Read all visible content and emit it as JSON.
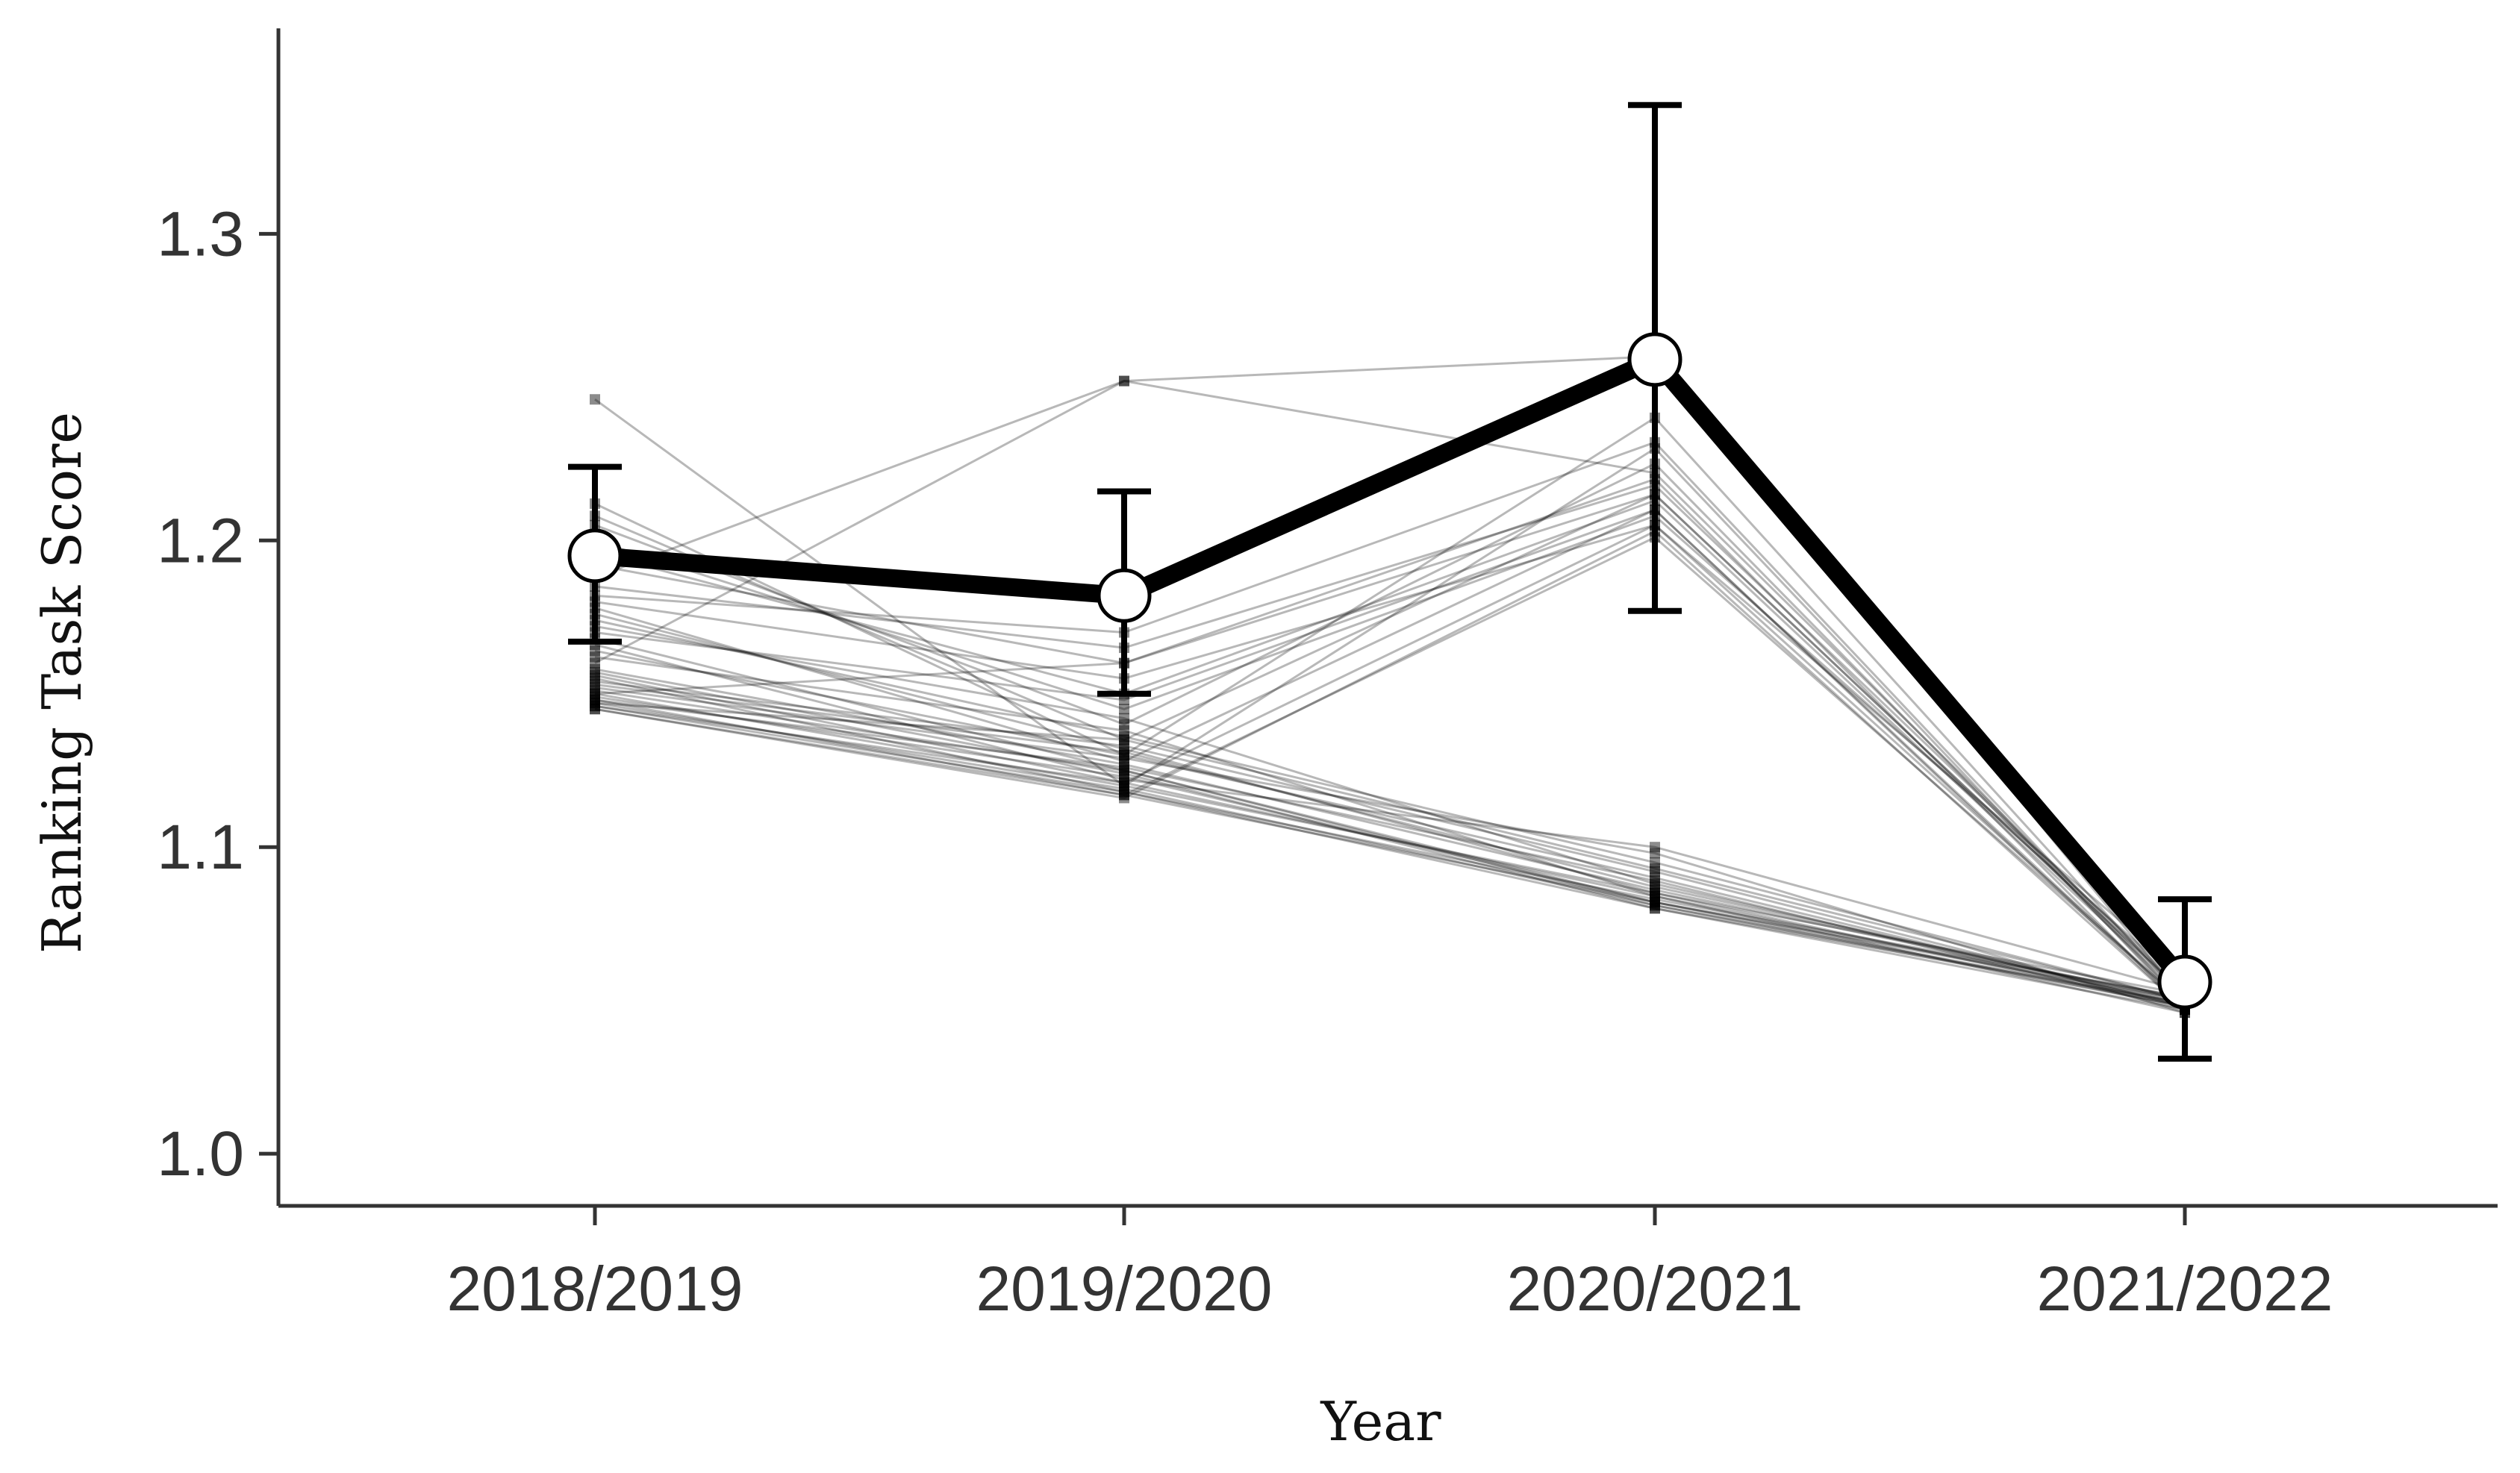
{
  "chart_data": {
    "type": "line",
    "title": "",
    "xlabel": "Year",
    "ylabel": "Ranking Task Score",
    "categories": [
      "2018/2019",
      "2019/2020",
      "2020/2021",
      "2021/2022"
    ],
    "ylim": [
      0.983,
      1.367
    ],
    "yticks": [
      1.0,
      1.1,
      1.2,
      1.3
    ],
    "ytick_labels": [
      "1.0",
      "1.1",
      "1.2",
      "1.3"
    ],
    "grid": false,
    "legend": "none",
    "mean_series": {
      "values": [
        1.195,
        1.182,
        1.259,
        1.056
      ],
      "error_low": [
        1.167,
        1.15,
        1.177,
        1.031
      ],
      "error_high": [
        1.224,
        1.216,
        1.342,
        1.083
      ]
    },
    "individual_series": [
      [
        1.246,
        1.12,
        1.23,
        1.048
      ],
      [
        1.212,
        1.13,
        1.24,
        1.05
      ],
      [
        1.208,
        1.135,
        1.215,
        1.052
      ],
      [
        1.205,
        1.14,
        1.225,
        1.049
      ],
      [
        1.2,
        1.145,
        1.208,
        1.055
      ],
      [
        1.196,
        1.15,
        1.213,
        1.051
      ],
      [
        1.192,
        1.16,
        1.22,
        1.047
      ],
      [
        1.188,
        1.252,
        1.26,
        1.05
      ],
      [
        1.185,
        1.165,
        1.218,
        1.053
      ],
      [
        1.182,
        1.17,
        1.232,
        1.049
      ],
      [
        1.18,
        1.155,
        1.205,
        1.058
      ],
      [
        1.178,
        1.128,
        1.21,
        1.048
      ],
      [
        1.176,
        1.132,
        1.085,
        1.052
      ],
      [
        1.174,
        1.136,
        1.095,
        1.05
      ],
      [
        1.172,
        1.142,
        1.088,
        1.049
      ],
      [
        1.17,
        1.148,
        1.21,
        1.047
      ],
      [
        1.168,
        1.125,
        1.082,
        1.051
      ],
      [
        1.166,
        1.122,
        1.1,
        1.053
      ],
      [
        1.164,
        1.13,
        1.09,
        1.048
      ],
      [
        1.162,
        1.138,
        1.084,
        1.049
      ],
      [
        1.16,
        1.252,
        1.222,
        1.052
      ],
      [
        1.158,
        1.127,
        1.086,
        1.05
      ],
      [
        1.157,
        1.124,
        1.08,
        1.047
      ],
      [
        1.156,
        1.121,
        1.205,
        1.049
      ],
      [
        1.155,
        1.118,
        1.083,
        1.051
      ],
      [
        1.154,
        1.133,
        1.092,
        1.048
      ],
      [
        1.153,
        1.131,
        1.087,
        1.05
      ],
      [
        1.152,
        1.129,
        1.098,
        1.046
      ],
      [
        1.151,
        1.125,
        1.081,
        1.049
      ],
      [
        1.15,
        1.16,
        1.215,
        1.052
      ],
      [
        1.15,
        1.12,
        1.085,
        1.048
      ],
      [
        1.149,
        1.123,
        1.082,
        1.05
      ],
      [
        1.148,
        1.117,
        1.201,
        1.049
      ],
      [
        1.148,
        1.126,
        1.089,
        1.047
      ],
      [
        1.147,
        1.119,
        1.081,
        1.048
      ],
      [
        1.147,
        1.135,
        1.093,
        1.05
      ],
      [
        1.146,
        1.121,
        1.084,
        1.046
      ],
      [
        1.146,
        1.118,
        1.08,
        1.049
      ],
      [
        1.145,
        1.116,
        1.203,
        1.047
      ],
      [
        1.145,
        1.117,
        1.082,
        1.048
      ]
    ]
  }
}
